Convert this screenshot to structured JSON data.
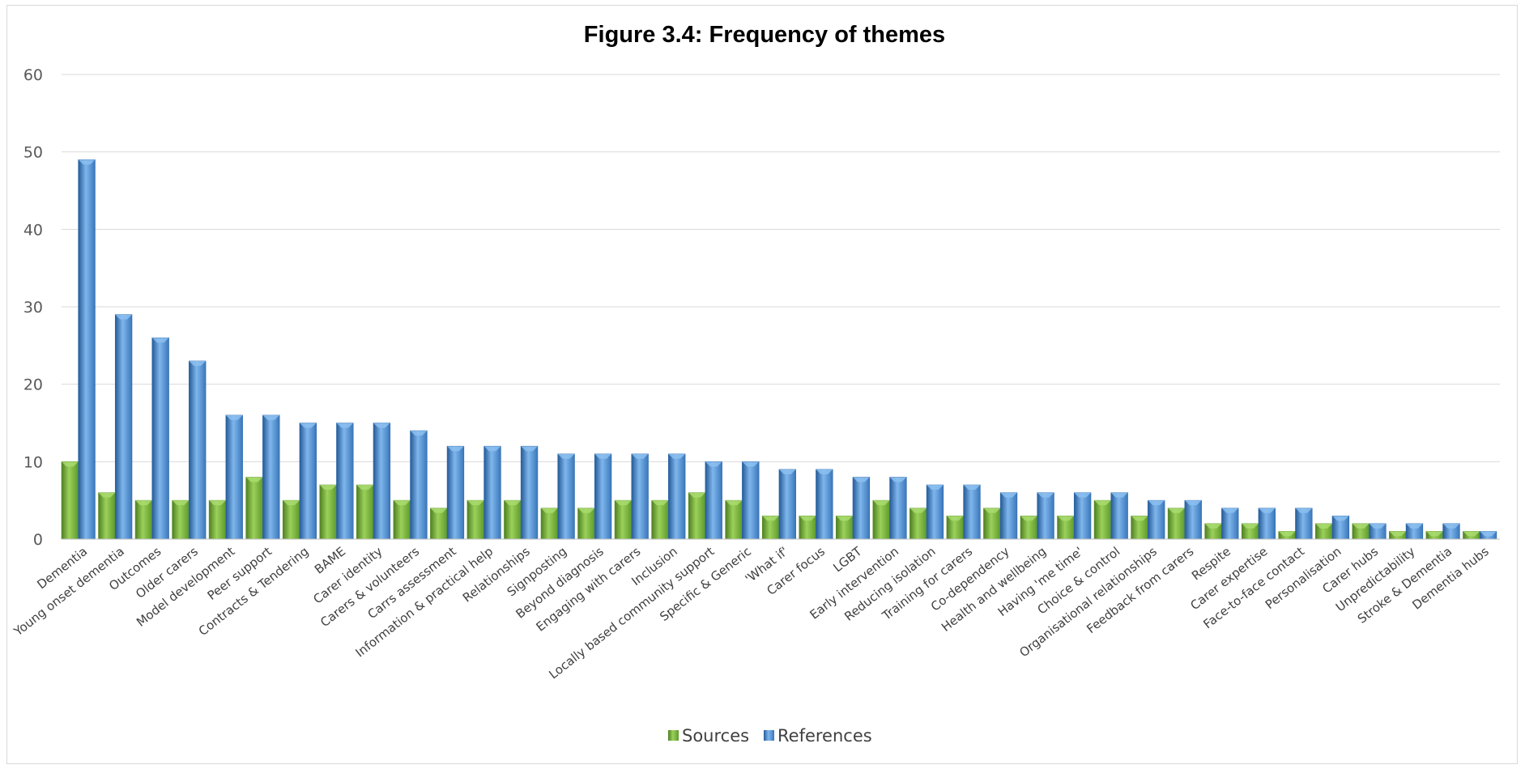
{
  "chart_data": {
    "type": "bar",
    "title": "Figure 3.4: Frequency of themes",
    "xlabel": "",
    "ylabel": "",
    "ylim": [
      0,
      60
    ],
    "yticks": [
      0,
      10,
      20,
      30,
      40,
      50,
      60
    ],
    "grid": true,
    "legend_position": "bottom",
    "categories": [
      "Dementia",
      "Young onset dementia",
      "Outcomes",
      "Older carers",
      "Model development",
      "Peer support",
      "Contracts & Tendering",
      "BAME",
      "Carer identity",
      "Carers & volunteers",
      "Carrs assessment",
      "Information & practical help",
      "Relationships",
      "Signposting",
      "Beyond diagnosis",
      "Engaging with carers",
      "Inclusion",
      "Locally based community support",
      "Specific & Generic",
      "'What if'",
      "Carer focus",
      "LGBT",
      "Early intervention",
      "Reducing isolation",
      "Training for carers",
      "Co-dependency",
      "Health and wellbeing",
      "Having 'me time'",
      "Choice & control",
      "Organisational relationships",
      "Feedback from carers",
      "Respite",
      "Carer expertise",
      "Face-to-face contact",
      "Personalisation",
      "Carer hubs",
      "Unpredictability",
      "Stroke & Dementia",
      "Dementia hubs"
    ],
    "series": [
      {
        "name": "Sources",
        "color": "#7bb343",
        "values": [
          10,
          6,
          5,
          5,
          5,
          8,
          5,
          7,
          7,
          5,
          4,
          5,
          5,
          4,
          4,
          5,
          5,
          6,
          5,
          3,
          3,
          3,
          5,
          4,
          3,
          4,
          3,
          3,
          5,
          3,
          4,
          2,
          2,
          1,
          2,
          2,
          1,
          1,
          1
        ]
      },
      {
        "name": "References",
        "color": "#4d8fd0",
        "values": [
          49,
          29,
          26,
          23,
          16,
          16,
          15,
          15,
          15,
          14,
          12,
          12,
          12,
          11,
          11,
          11,
          11,
          10,
          10,
          9,
          9,
          8,
          8,
          7,
          7,
          6,
          6,
          6,
          6,
          5,
          5,
          4,
          4,
          4,
          3,
          2,
          2,
          2,
          1
        ]
      }
    ]
  }
}
